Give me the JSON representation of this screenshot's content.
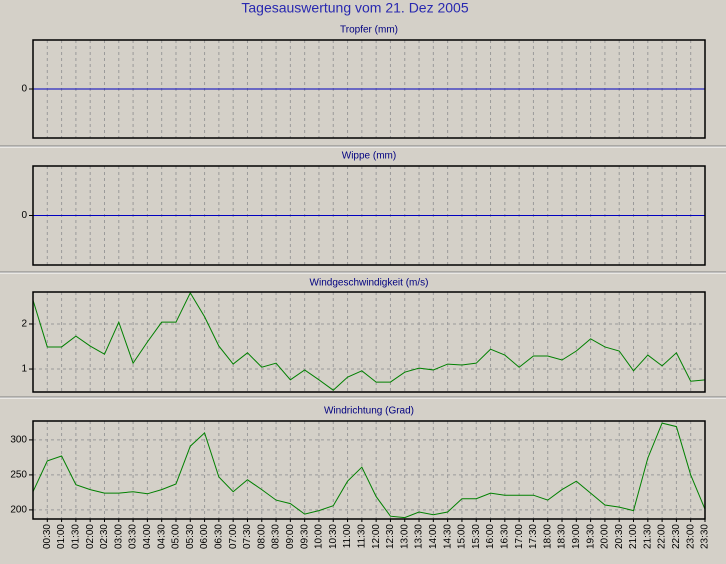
{
  "title": "Tagesauswertung vom 21. Dez 2005",
  "chart_data": [
    {
      "type": "line",
      "title": "Tropfer (mm)",
      "color": "#0000c0",
      "values": [
        0,
        0,
        0,
        0,
        0,
        0,
        0,
        0,
        0,
        0,
        0,
        0,
        0,
        0,
        0,
        0,
        0,
        0,
        0,
        0,
        0,
        0,
        0,
        0,
        0,
        0,
        0,
        0,
        0,
        0,
        0,
        0,
        0,
        0,
        0,
        0,
        0,
        0,
        0,
        0,
        0,
        0,
        0,
        0,
        0,
        0,
        0,
        0
      ],
      "ylim": [
        -1,
        1
      ],
      "yticks": [
        0
      ],
      "grid": true
    },
    {
      "type": "line",
      "title": "Wippe (mm)",
      "color": "#0000c0",
      "values": [
        0,
        0,
        0,
        0,
        0,
        0,
        0,
        0,
        0,
        0,
        0,
        0,
        0,
        0,
        0,
        0,
        0,
        0,
        0,
        0,
        0,
        0,
        0,
        0,
        0,
        0,
        0,
        0,
        0,
        0,
        0,
        0,
        0,
        0,
        0,
        0,
        0,
        0,
        0,
        0,
        0,
        0,
        0,
        0,
        0,
        0,
        0,
        0
      ],
      "ylim": [
        -1,
        1
      ],
      "yticks": [
        0
      ],
      "grid": true
    },
    {
      "type": "line",
      "title": "Windgeschwindigkeit (m/s)",
      "color": "#008000",
      "values": [
        2.53,
        1.49,
        1.49,
        1.73,
        1.51,
        1.33,
        2.04,
        1.13,
        1.6,
        2.04,
        2.04,
        2.69,
        2.16,
        1.51,
        1.11,
        1.36,
        1.04,
        1.13,
        0.76,
        0.98,
        0.76,
        0.53,
        0.82,
        0.96,
        0.71,
        0.71,
        0.93,
        1.02,
        0.98,
        1.11,
        1.09,
        1.13,
        1.44,
        1.31,
        1.04,
        1.29,
        1.29,
        1.2,
        1.4,
        1.67,
        1.49,
        1.4,
        0.96,
        1.31,
        1.07,
        1.36,
        0.73,
        0.76
      ],
      "ylim": [
        0.49,
        2.71
      ],
      "yticks": [
        1,
        2
      ],
      "grid": true
    },
    {
      "type": "line",
      "title": "Windrichtung (Grad)",
      "color": "#008000",
      "categories": [
        null,
        "00:30",
        "01:00",
        "01:30",
        "02:00",
        "02:30",
        "03:00",
        "03:30",
        "04:00",
        "04:30",
        "05:00",
        "05:30",
        "06:00",
        "06:30",
        "07:00",
        "07:30",
        "08:00",
        "08:30",
        "09:00",
        "09:30",
        "10:00",
        "10:30",
        "11:00",
        "11:30",
        "12:00",
        "12:30",
        "13:00",
        "13:30",
        "14:00",
        "14:30",
        "15:00",
        "15:30",
        "16:00",
        "16:30",
        "17:00",
        "17:30",
        "18:00",
        "18:30",
        "19:00",
        "19:30",
        "20:00",
        "20:30",
        "21:00",
        "21:30",
        "22:00",
        "22:30",
        "23:00",
        "23:30"
      ],
      "values": [
        226,
        270,
        277,
        236,
        229,
        224,
        224,
        226,
        223,
        229,
        237,
        291,
        310,
        247,
        226,
        243,
        229,
        214,
        209,
        194,
        199,
        206,
        241,
        261,
        219,
        191,
        189,
        197,
        193,
        197,
        216,
        216,
        224,
        221,
        221,
        221,
        214,
        229,
        241,
        224,
        207,
        204,
        199,
        274,
        324,
        319,
        250,
        201
      ],
      "ylim": [
        187,
        327
      ],
      "yticks": [
        200,
        250,
        300
      ],
      "grid": true
    }
  ]
}
